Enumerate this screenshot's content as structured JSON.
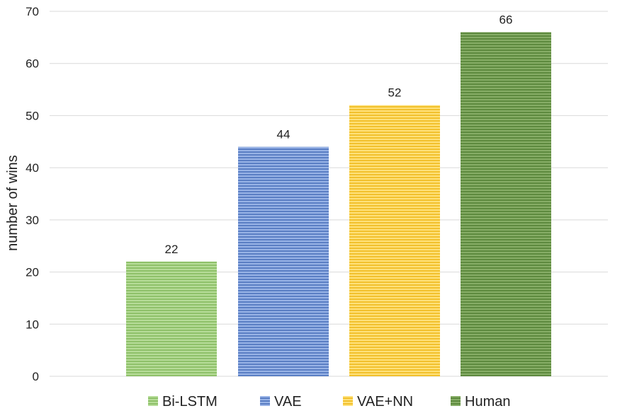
{
  "chart_data": {
    "type": "bar",
    "categories": [
      "Bi-LSTM",
      "VAE",
      "VAE+NN",
      "Human"
    ],
    "values": [
      22,
      44,
      52,
      66
    ],
    "data_labels": [
      "22",
      "44",
      "52",
      "66"
    ],
    "title": "",
    "xlabel": "",
    "ylabel": "number of wins",
    "ylim": [
      0,
      70
    ],
    "yticks": [
      "0",
      "10",
      "20",
      "30",
      "40",
      "50",
      "60",
      "70"
    ],
    "grid": true,
    "legend": {
      "placement": "bottom",
      "entries": [
        "Bi-LSTM",
        "VAE",
        "VAE+NN",
        "Human"
      ]
    },
    "colors": {
      "Bi-LSTM": {
        "fill": "#8fc16a",
        "stripe": "#b6dc98"
      },
      "VAE": {
        "fill": "#5b7fc4",
        "stripe": "#98b3e6"
      },
      "VAE+NN": {
        "fill": "#f2c12e",
        "stripe": "#ffe17a"
      },
      "Human": {
        "fill": "#5e8a3f",
        "stripe": "#86ad66"
      }
    }
  }
}
